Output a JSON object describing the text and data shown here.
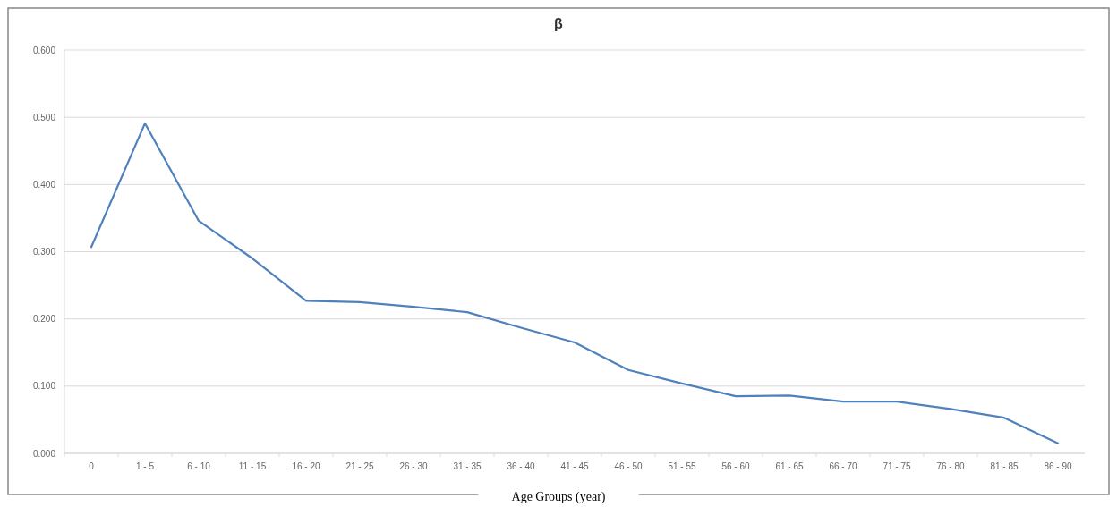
{
  "chart_data": {
    "type": "line",
    "title": "β",
    "xlabel": "Age Groups (year)",
    "categories": [
      "0",
      "1 - 5",
      "6 - 10",
      "11 - 15",
      "16 - 20",
      "21 - 25",
      "26 - 30",
      "31 - 35",
      "36 - 40",
      "41 - 45",
      "46 - 50",
      "51 - 55",
      "56 - 60",
      "61 - 65",
      "66 - 70",
      "71 - 75",
      "76 - 80",
      "81 - 85",
      "86 - 90"
    ],
    "series": [
      {
        "color": "#4f81bd",
        "values": [
          0.307,
          0.491,
          0.346,
          0.29,
          0.227,
          0.225,
          0.218,
          0.21,
          0.187,
          0.165,
          0.124,
          0.104,
          0.085,
          0.086,
          0.077,
          0.077,
          0.066,
          0.053,
          0.015
        ]
      }
    ],
    "ylim": [
      0,
      0.6
    ],
    "yticks": [
      {
        "value": 0,
        "label": "0.000"
      },
      {
        "value": 0.1,
        "label": "0.100"
      },
      {
        "value": 0.2,
        "label": "0.200"
      },
      {
        "value": 0.3,
        "label": "0.300"
      },
      {
        "value": 0.4,
        "label": "0.400"
      },
      {
        "value": 0.5,
        "label": "0.500"
      },
      {
        "value": 0.6,
        "label": "0.600"
      }
    ],
    "grid": "y",
    "marker": "none",
    "line_style": "solid"
  }
}
